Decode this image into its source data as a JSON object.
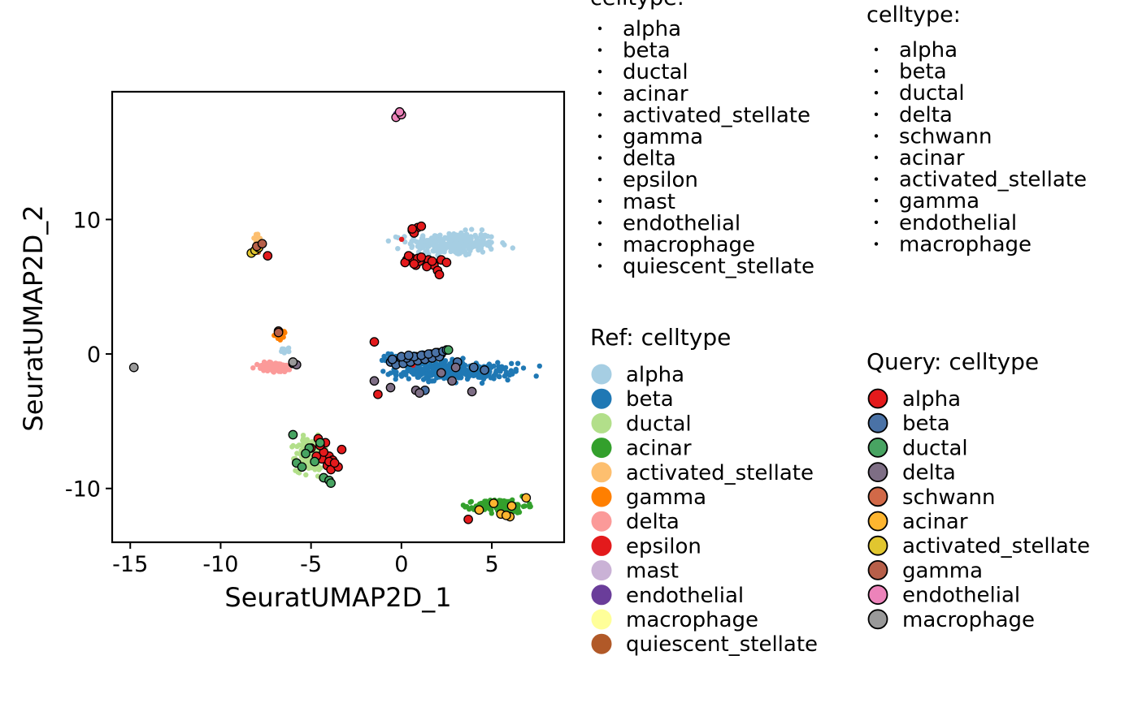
{
  "chart_data": {
    "type": "scatter",
    "xlabel": "SeuratUMAP2D_1",
    "ylabel": "SeuratUMAP2D_2",
    "xlim": [
      -16,
      9
    ],
    "ylim": [
      -14,
      19.5
    ],
    "xticks": [
      -15,
      -10,
      -5,
      0,
      5
    ],
    "yticks": [
      -10,
      0,
      10
    ],
    "grid": false,
    "top_legends": [
      {
        "title": "celltype:",
        "items": [
          "alpha",
          "beta",
          "ductal",
          "acinar",
          "activated_stellate",
          "gamma",
          "delta",
          "epsilon",
          "mast",
          "endothelial",
          "macrophage",
          "quiescent_stellate"
        ]
      },
      {
        "title": "celltype:",
        "items": [
          "alpha",
          "beta",
          "ductal",
          "delta",
          "schwann",
          "acinar",
          "activated_stellate",
          "gamma",
          "endothelial",
          "macrophage"
        ]
      }
    ],
    "ref_legend": {
      "title": "Ref: celltype",
      "items": [
        {
          "label": "alpha",
          "color": "#A6CEE3"
        },
        {
          "label": "beta",
          "color": "#1F78B4"
        },
        {
          "label": "ductal",
          "color": "#B2DF8A"
        },
        {
          "label": "acinar",
          "color": "#33A02C"
        },
        {
          "label": "activated_stellate",
          "color": "#FDBF6F"
        },
        {
          "label": "gamma",
          "color": "#FF7F00"
        },
        {
          "label": "delta",
          "color": "#FB9A99"
        },
        {
          "label": "epsilon",
          "color": "#E31A1C"
        },
        {
          "label": "mast",
          "color": "#CAB2D6"
        },
        {
          "label": "endothelial",
          "color": "#6A3D9A"
        },
        {
          "label": "macrophage",
          "color": "#FFFF99"
        },
        {
          "label": "quiescent_stellate",
          "color": "#B15928"
        }
      ]
    },
    "query_legend": {
      "title": "Query: celltype",
      "items": [
        {
          "label": "alpha",
          "color": "#E41A1C"
        },
        {
          "label": "beta",
          "color": "#4A72A6"
        },
        {
          "label": "ductal",
          "color": "#48A462"
        },
        {
          "label": "delta",
          "color": "#7E6E85"
        },
        {
          "label": "schwann",
          "color": "#D16948"
        },
        {
          "label": "acinar",
          "color": "#FDB52F"
        },
        {
          "label": "activated_stellate",
          "color": "#E1C62F"
        },
        {
          "label": "gamma",
          "color": "#B75F49"
        },
        {
          "label": "endothelial",
          "color": "#EC83BA"
        },
        {
          "label": "macrophage",
          "color": "#999999"
        }
      ]
    },
    "ref_clusters": [
      {
        "type": "alpha",
        "cx": 2.8,
        "cy": 8.2,
        "sx": 2.2,
        "sy": 0.8,
        "n": 260
      },
      {
        "type": "beta",
        "cx": 3.0,
        "cy": -1.3,
        "sx": 2.9,
        "sy": 0.55,
        "n": 320
      },
      {
        "type": "beta",
        "cx": 1.0,
        "cy": -0.3,
        "sx": 1.5,
        "sy": 0.35,
        "n": 80
      },
      {
        "type": "ductal",
        "cx": -5.0,
        "cy": -7.5,
        "sx": 0.75,
        "sy": 1.1,
        "n": 200
      },
      {
        "type": "acinar",
        "cx": 5.5,
        "cy": -11.3,
        "sx": 1.3,
        "sy": 0.45,
        "n": 150
      },
      {
        "type": "delta",
        "cx": -7.0,
        "cy": -1.0,
        "sx": 0.9,
        "sy": 0.35,
        "n": 90
      },
      {
        "type": "gamma",
        "cx": -6.6,
        "cy": 1.4,
        "sx": 0.3,
        "sy": 0.3,
        "n": 20
      },
      {
        "type": "alpha",
        "cx": -6.4,
        "cy": 0.3,
        "sx": 0.25,
        "sy": 0.2,
        "n": 10
      },
      {
        "type": "activated_stellate",
        "cx": -8.0,
        "cy": 8.5,
        "sx": 0.2,
        "sy": 0.6,
        "n": 12
      },
      {
        "type": "quiescent_stellate",
        "cx": -8.0,
        "cy": 8.0,
        "sx": 0.2,
        "sy": 0.5,
        "n": 8
      },
      {
        "type": "endothelial",
        "cx": -0.2,
        "cy": 17.9,
        "sx": 0.12,
        "sy": 0.1,
        "n": 4
      },
      {
        "type": "epsilon",
        "cx": 0.0,
        "cy": 8.5,
        "sx": 0.05,
        "sy": 0.05,
        "n": 1
      },
      {
        "type": "epsilon",
        "cx": 0.6,
        "cy": -0.8,
        "sx": 0.05,
        "sy": 0.05,
        "n": 1
      }
    ],
    "query_points": [
      {
        "type": "alpha",
        "x": [
          0.6,
          0.9,
          1.1,
          0.7,
          0.3,
          0.5,
          1.3,
          0.8,
          0.2,
          1.5,
          1.8,
          2.2,
          2.5,
          1.0,
          0.4,
          0.9,
          1.4,
          2.0,
          1.7,
          2.1,
          0.6,
          0.7,
          1.1
        ],
        "y": [
          9.2,
          9.4,
          9.5,
          9.0,
          7.0,
          7.2,
          6.9,
          6.6,
          6.8,
          7.0,
          6.6,
          7.0,
          6.8,
          6.9,
          7.3,
          7.1,
          6.5,
          6.2,
          6.9,
          5.9,
          9.3,
          6.7,
          7.2
        ]
      },
      {
        "type": "alpha",
        "x": [
          -4.6,
          -4.2,
          -4.0,
          -3.8,
          -4.4,
          -4.1,
          -3.9,
          -3.5,
          -4.3,
          -4.7,
          -5.0,
          -3.3,
          -4.5,
          -4.0,
          -3.7
        ],
        "y": [
          -6.3,
          -6.6,
          -7.6,
          -7.9,
          -7.8,
          -8.3,
          -8.6,
          -8.4,
          -7.3,
          -7.6,
          -7.0,
          -7.1,
          -6.8,
          -8.0,
          -8.1
        ]
      },
      {
        "type": "alpha",
        "x": [
          -7.4,
          -1.5,
          -1.3,
          3.7
        ],
        "y": [
          7.3,
          0.9,
          -3.0,
          -12.3
        ]
      },
      {
        "type": "beta",
        "x": [
          -0.6,
          -0.4,
          -0.2,
          0.0,
          0.2,
          0.4,
          0.6,
          0.8,
          1.0,
          1.2,
          1.4,
          1.6,
          1.8,
          2.0,
          2.2,
          -0.3,
          0.1,
          0.5,
          0.9,
          1.3,
          1.7,
          2.1,
          -0.5,
          0.3,
          0.7,
          1.1,
          1.5,
          1.9,
          2.3,
          2.5,
          0.0,
          0.4
        ],
        "y": [
          -0.6,
          -0.5,
          -0.6,
          -0.4,
          -0.5,
          -0.3,
          -0.4,
          -0.2,
          -0.3,
          -0.1,
          -0.2,
          0.0,
          -0.1,
          0.1,
          0.0,
          -0.8,
          -0.7,
          -0.6,
          -0.5,
          -0.4,
          -0.3,
          -0.2,
          -0.4,
          -0.3,
          -0.2,
          -0.1,
          0.0,
          0.1,
          0.2,
          0.3,
          -0.2,
          -0.1
        ]
      },
      {
        "type": "beta",
        "x": [
          3.1,
          4.0,
          4.6,
          1.3
        ],
        "y": [
          -0.6,
          -1.0,
          -1.2,
          -2.7
        ]
      },
      {
        "type": "ductal",
        "x": [
          -6.0,
          -5.1,
          -5.8,
          -5.5,
          -4.8,
          -4.3,
          -5.3,
          -4.0,
          -3.9,
          -4.5,
          2.6
        ],
        "y": [
          -6.0,
          -7.0,
          -8.1,
          -8.4,
          -8.0,
          -9.2,
          -7.4,
          -9.4,
          -9.6,
          -6.6,
          0.3
        ]
      },
      {
        "type": "delta",
        "x": [
          -6.0,
          -5.8,
          -1.5,
          -0.6,
          0.8,
          1.0,
          2.2,
          3.0,
          2.8,
          3.9
        ],
        "y": [
          -0.7,
          -0.8,
          -2.0,
          -2.5,
          -2.7,
          -2.9,
          -1.4,
          -1.0,
          -2.0,
          -2.8
        ]
      },
      {
        "type": "schwann",
        "x": [
          -6.8
        ],
        "y": [
          1.7
        ]
      },
      {
        "type": "acinar",
        "x": [
          4.3,
          5.1,
          5.5,
          6.0,
          6.1,
          6.9,
          5.8
        ],
        "y": [
          -11.6,
          -11.1,
          -11.9,
          -12.1,
          -11.3,
          -10.7,
          -12.0
        ]
      },
      {
        "type": "activated_stellate",
        "x": [
          -8.3,
          -8.1,
          -7.9
        ],
        "y": [
          7.5,
          7.7,
          7.9
        ]
      },
      {
        "type": "gamma",
        "x": [
          -8.0,
          -7.7,
          -6.8
        ],
        "y": [
          8.0,
          8.2,
          1.6
        ]
      },
      {
        "type": "endothelial",
        "x": [
          -0.3,
          0.0,
          -0.1
        ],
        "y": [
          17.6,
          17.8,
          18.0
        ]
      },
      {
        "type": "macrophage",
        "x": [
          -14.8,
          -6.0
        ],
        "y": [
          -1.0,
          -0.6
        ]
      }
    ]
  }
}
